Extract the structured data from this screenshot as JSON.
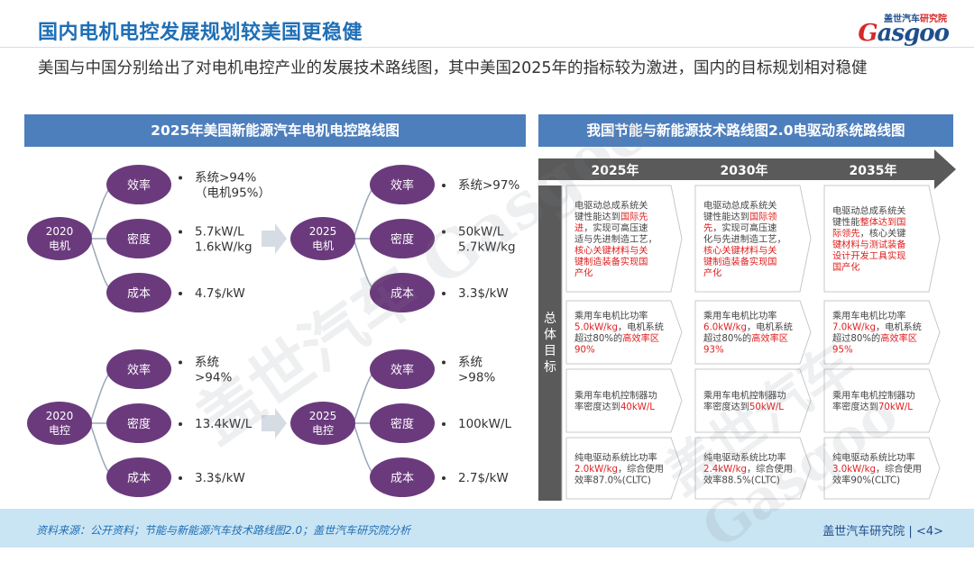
{
  "title": "国内电机电控发展规划较美国更稳健",
  "subtitle": "美国与中国分别给出了对电机电控产业的发展技术路线图，其中美国2025年的指标较为激进，国内的目标规划相对稳健",
  "logo": {
    "top_left": "盖世汽车",
    "top_right": "研究院",
    "main_g": "G",
    "main_rest": "asgoo"
  },
  "left_panel": {
    "title": "2025年美国新能源汽车电机电控路线图",
    "groups": [
      {
        "start": [
          "2020",
          "电机"
        ],
        "end": [
          "2025",
          "电机"
        ],
        "metrics": [
          {
            "name": "效率",
            "from": [
              "系统>94%",
              "（电机95%）"
            ],
            "to": [
              "系统>97%"
            ]
          },
          {
            "name": "密度",
            "from": [
              "5.7kW/L",
              "1.6kW/kg"
            ],
            "to": [
              "50kW/L",
              "5.7kW/kg"
            ]
          },
          {
            "name": "成本",
            "from": [
              "4.7$/kW"
            ],
            "to": [
              "3.3$/kW"
            ]
          }
        ]
      },
      {
        "start": [
          "2020",
          "电控"
        ],
        "end": [
          "2025",
          "电控"
        ],
        "metrics": [
          {
            "name": "效率",
            "from": [
              "系统",
              ">94%"
            ],
            "to": [
              "系统",
              ">98%"
            ]
          },
          {
            "name": "密度",
            "from": [
              "13.4kW/L"
            ],
            "to": [
              "100kW/L"
            ]
          },
          {
            "name": "成本",
            "from": [
              "3.3$/kW"
            ],
            "to": [
              "2.7$/kW"
            ]
          }
        ]
      }
    ]
  },
  "right_panel": {
    "title": "我国节能与新能源技术路线图2.0电驱动系统路线图",
    "years": [
      "2025年",
      "2030年",
      "2035年"
    ],
    "side_label": [
      "总",
      "体",
      "目",
      "标"
    ],
    "rows": [
      [
        [
          [
            {
              "t": "电驱动总成系统关",
              "h": false
            }
          ],
          [
            {
              "t": "键性能达到",
              "h": false
            },
            {
              "t": "国际先",
              "h": true
            }
          ],
          [
            {
              "t": "进",
              "h": true
            },
            {
              "t": "，实现可高压速",
              "h": false
            }
          ],
          [
            {
              "t": "适与先进制造工艺，",
              "h": false
            }
          ],
          [
            {
              "t": "核心关键材料与关",
              "h": true
            }
          ],
          [
            {
              "t": "键制造装备实现国",
              "h": true
            }
          ],
          [
            {
              "t": "产化",
              "h": true
            }
          ]
        ],
        [
          [
            {
              "t": "电驱动总成系统关",
              "h": false
            }
          ],
          [
            {
              "t": "键性能达到",
              "h": false
            },
            {
              "t": "国际领",
              "h": true
            }
          ],
          [
            {
              "t": "先",
              "h": true
            },
            {
              "t": "，实现可高压速",
              "h": false
            }
          ],
          [
            {
              "t": "化与先进制造工艺，",
              "h": false
            }
          ],
          [
            {
              "t": "核心关键材料与关",
              "h": true
            }
          ],
          [
            {
              "t": "键制造装备实现国",
              "h": true
            }
          ],
          [
            {
              "t": "产化",
              "h": true
            }
          ]
        ],
        [
          [
            {
              "t": "电驱动总成系统关",
              "h": false
            }
          ],
          [
            {
              "t": "键性能",
              "h": false
            },
            {
              "t": "整体达到国",
              "h": true
            }
          ],
          [
            {
              "t": "际领先",
              "h": true
            },
            {
              "t": "，核心关键",
              "h": false
            }
          ],
          [
            {
              "t": "键材料与测试装备",
              "h": true
            }
          ],
          [
            {
              "t": "设计开发工具实现",
              "h": true
            }
          ],
          [
            {
              "t": "国产化",
              "h": true
            }
          ]
        ]
      ],
      [
        [
          [
            {
              "t": "乘用车电机比功率",
              "h": false
            }
          ],
          [
            {
              "t": "5.0kW/kg",
              "h": true
            },
            {
              "t": "，电机系统",
              "h": false
            }
          ],
          [
            {
              "t": "超过80%的",
              "h": false
            },
            {
              "t": "高效率区",
              "h": true
            }
          ],
          [
            {
              "t": "90%",
              "h": true
            }
          ]
        ],
        [
          [
            {
              "t": "乘用车电机比功率",
              "h": false
            }
          ],
          [
            {
              "t": "6.0kW/kg",
              "h": true
            },
            {
              "t": "，电机系统",
              "h": false
            }
          ],
          [
            {
              "t": "超过80%的",
              "h": false
            },
            {
              "t": "高效率区",
              "h": true
            }
          ],
          [
            {
              "t": "93%",
              "h": true
            }
          ]
        ],
        [
          [
            {
              "t": "乘用车电机比功率",
              "h": false
            }
          ],
          [
            {
              "t": "7.0kW/kg",
              "h": true
            },
            {
              "t": "，电机系统",
              "h": false
            }
          ],
          [
            {
              "t": "超过80%的",
              "h": false
            },
            {
              "t": "高效率区",
              "h": true
            }
          ],
          [
            {
              "t": "95%",
              "h": true
            }
          ]
        ]
      ],
      [
        [
          [
            {
              "t": "乘用车电机控制器功",
              "h": false
            }
          ],
          [
            {
              "t": "率密度达到",
              "h": false
            },
            {
              "t": "40kW/L",
              "h": true
            }
          ]
        ],
        [
          [
            {
              "t": "乘用车电机控制器功",
              "h": false
            }
          ],
          [
            {
              "t": "率密度达到",
              "h": false
            },
            {
              "t": "50kW/L",
              "h": true
            }
          ]
        ],
        [
          [
            {
              "t": "乘用车电机控制器功",
              "h": false
            }
          ],
          [
            {
              "t": "率密度达到",
              "h": false
            },
            {
              "t": "70kW/L",
              "h": true
            }
          ]
        ]
      ],
      [
        [
          [
            {
              "t": "纯电驱动系统比功率",
              "h": false
            }
          ],
          [
            {
              "t": "2.0kW/kg",
              "h": true
            },
            {
              "t": "，综合使用",
              "h": false
            }
          ],
          [
            {
              "t": "效率87.0%(CLTC)",
              "h": false
            }
          ]
        ],
        [
          [
            {
              "t": "纯电驱动系统比功率",
              "h": false
            }
          ],
          [
            {
              "t": "2.4kW/kg",
              "h": true
            },
            {
              "t": "，综合使用",
              "h": false
            }
          ],
          [
            {
              "t": "效率88.5%(CLTC)",
              "h": false
            }
          ]
        ],
        [
          [
            {
              "t": "纯电驱动系统比功率",
              "h": false
            }
          ],
          [
            {
              "t": "3.0kW/kg",
              "h": true
            },
            {
              "t": "，综合使用",
              "h": false
            }
          ],
          [
            {
              "t": "效率90%(CLTC)",
              "h": false
            }
          ]
        ]
      ]
    ]
  },
  "footer": {
    "source": "资料来源：公开资料；节能与新能源汽车技术路线图2.0；盖世汽车研究院分析",
    "org": "盖世汽车研究院",
    "page": "<4>"
  },
  "watermark": "盖世汽车 Gasgoo",
  "colors": {
    "title_blue": "#1f6fb6",
    "panel_blue": "#4e7fbd",
    "circle_purple": "#6b3a7d",
    "highlight_red": "#e02020",
    "footer_bg": "#c9e4f3"
  }
}
